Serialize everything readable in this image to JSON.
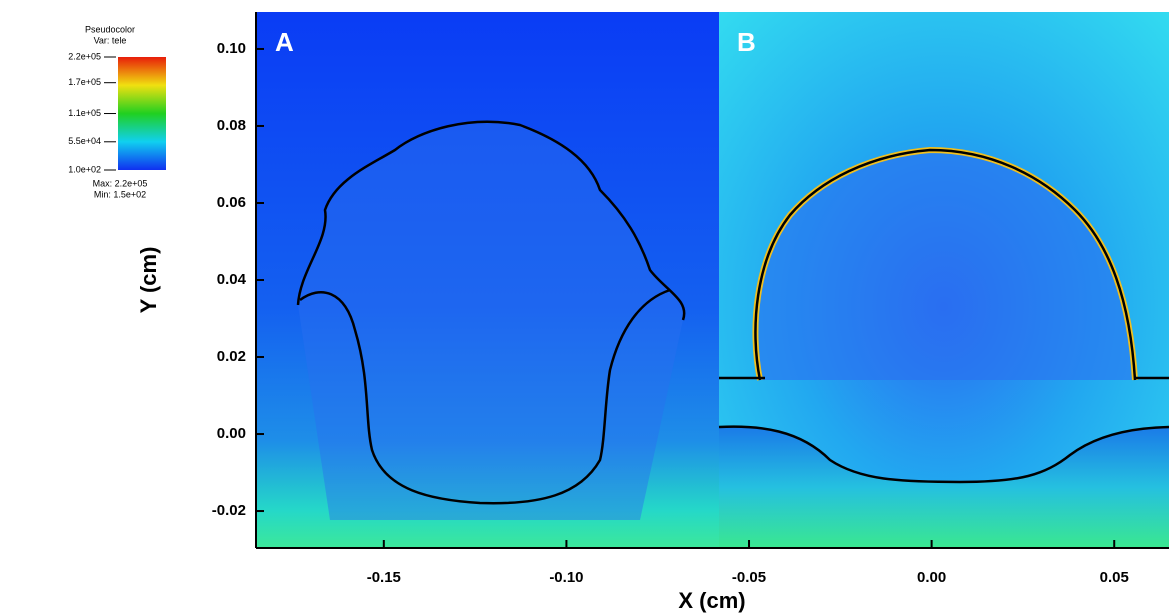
{
  "chart_data": {
    "type": "pseudocolor",
    "panels": [
      "A",
      "B"
    ],
    "x_label": "X (cm)",
    "y_label": "Y (cm)",
    "xlim": [
      -0.185,
      0.065
    ],
    "ylim": [
      -0.0296,
      0.1096
    ],
    "xticks": [
      -0.15,
      {
        "value": -0.1,
        "label": "-0.10"
      },
      -0.05,
      {
        "value": 0,
        "label": "0.00"
      },
      0.05
    ],
    "yticks": [
      {
        "value": -0.02,
        "label": "-0.02"
      },
      {
        "value": 0,
        "label": "0.00"
      },
      0.02,
      0.04,
      0.06,
      0.08,
      {
        "value": 0.1,
        "label": "0.10"
      }
    ],
    "colorbar": {
      "title": "Pseudocolor",
      "variable": "Var: tele",
      "clim": [
        100,
        220000
      ],
      "ticks": [
        {
          "value": 220000,
          "label": "2.2e+05"
        },
        {
          "value": 170000,
          "label": "1.7e+05"
        },
        {
          "value": 110000,
          "label": "1.1e+05"
        },
        {
          "value": 55000,
          "label": "5.5e+04"
        },
        {
          "value": 100,
          "label": "1.0e+02"
        }
      ],
      "max": "Max: 2.2e+05",
      "min": "Min: 1.5e+02"
    }
  }
}
